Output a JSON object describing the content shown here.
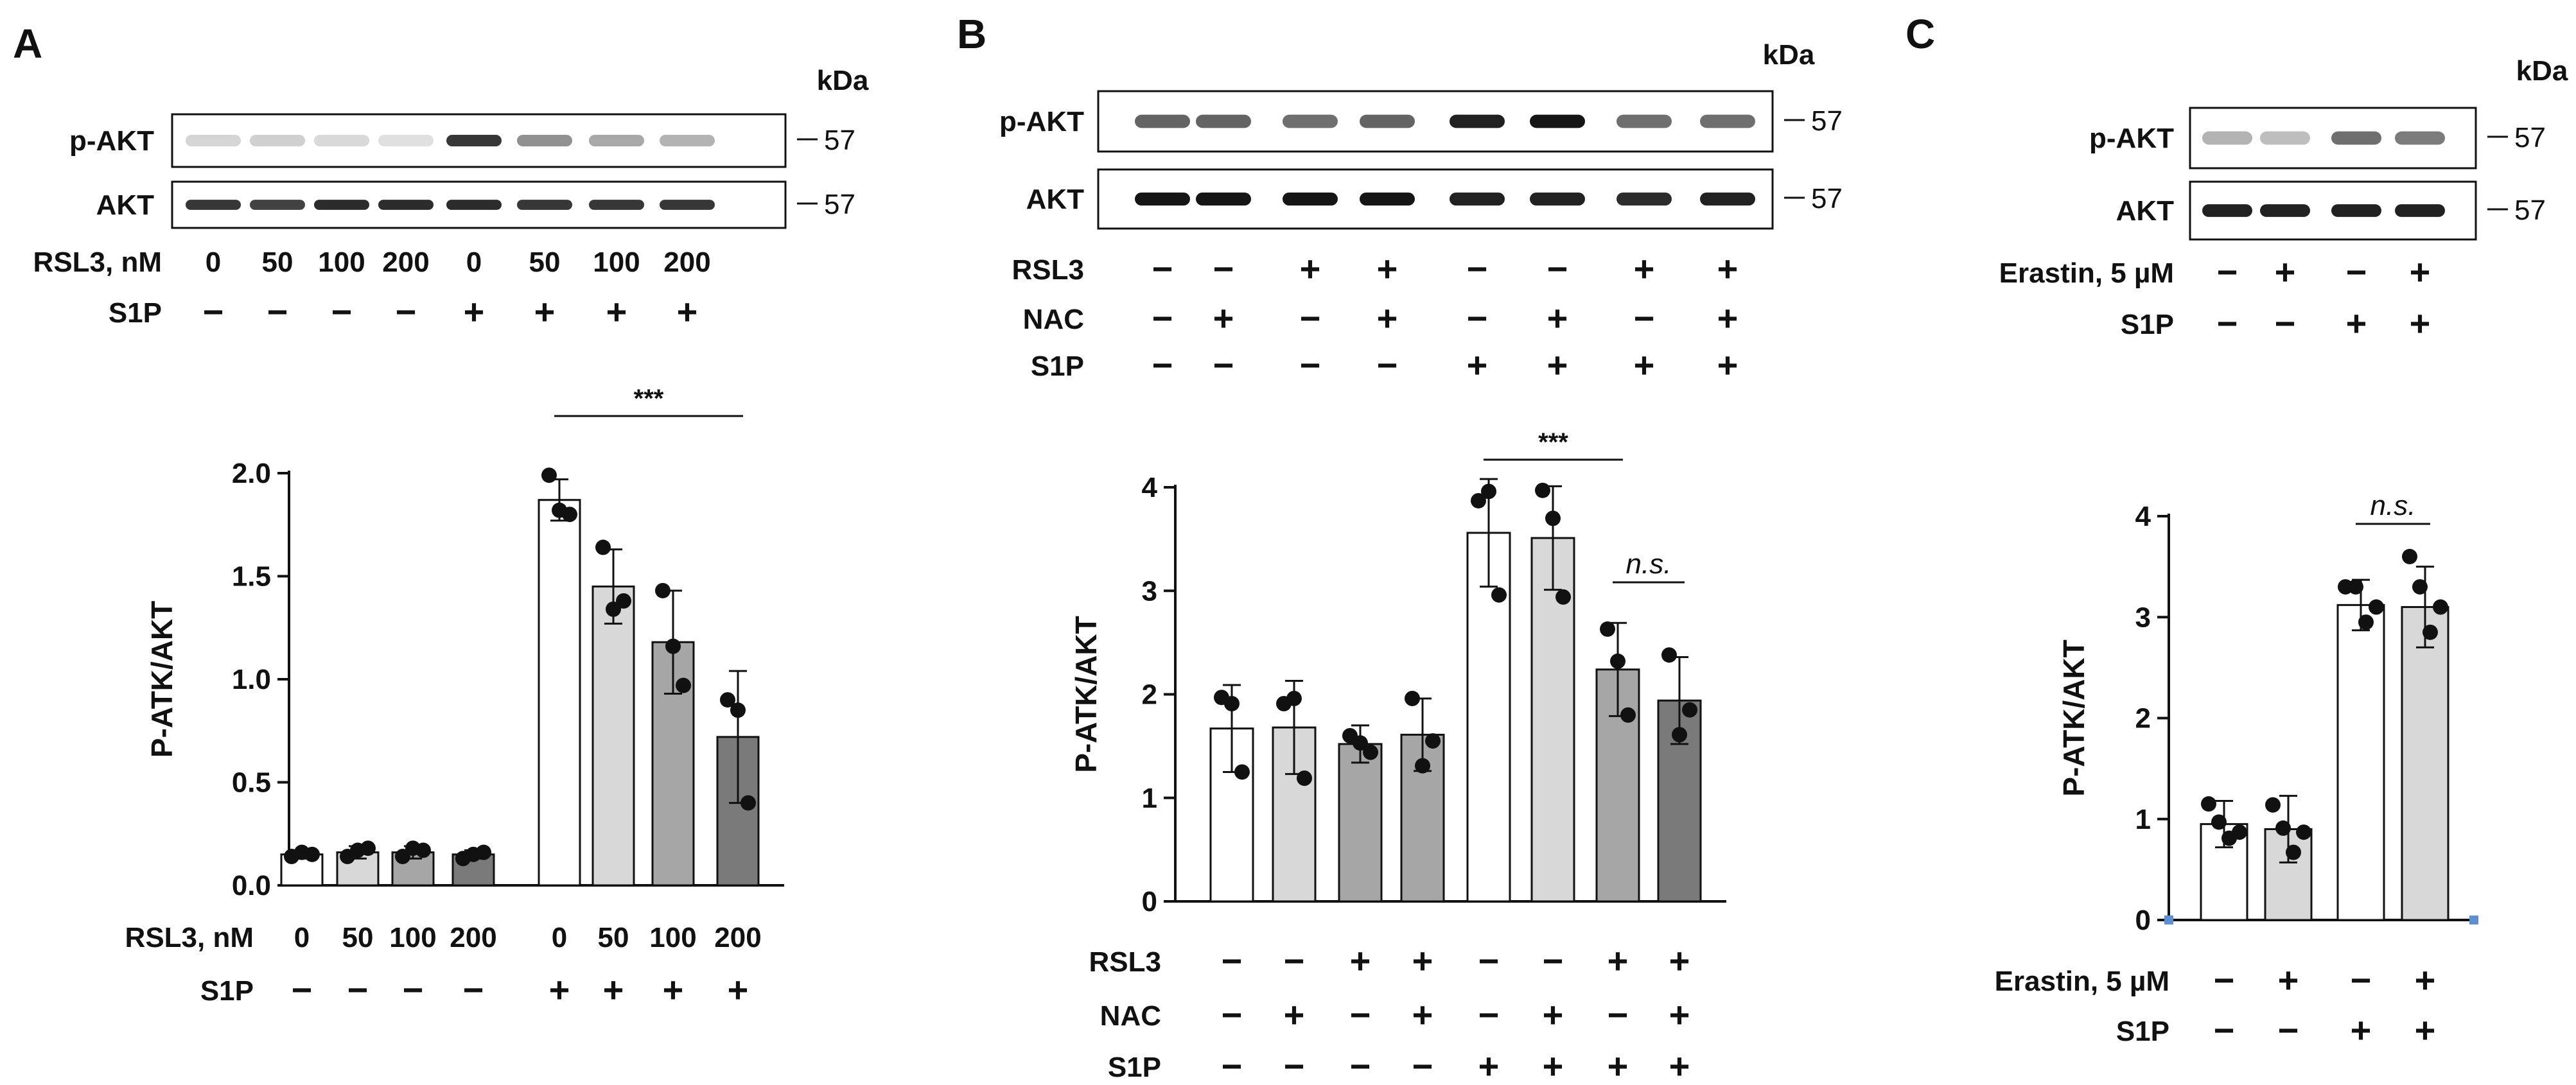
{
  "figure": {
    "panels": [
      {
        "letter": "A",
        "kda_label": "kDa",
        "blot_rows": [
          {
            "name": "p-AKT",
            "mw": "57",
            "intensities": [
              0.1,
              0.12,
              0.08,
              0.05,
              0.8,
              0.4,
              0.3,
              0.25
            ]
          },
          {
            "name": "AKT",
            "mw": "57",
            "intensities": [
              0.8,
              0.75,
              0.85,
              0.85,
              0.85,
              0.8,
              0.8,
              0.8
            ]
          }
        ],
        "blot_conditions": [
          {
            "label": "RSL3, nM",
            "values": [
              "0",
              "50",
              "100",
              "200",
              "0",
              "50",
              "100",
              "200"
            ]
          },
          {
            "label": "S1P",
            "values": [
              "−",
              "−",
              "−",
              "−",
              "+",
              "+",
              "+",
              "+"
            ]
          }
        ],
        "chart_conditions": [
          {
            "label": "RSL3, nM",
            "values": [
              "0",
              "50",
              "100",
              "200",
              "0",
              "50",
              "100",
              "200"
            ]
          },
          {
            "label": "S1P",
            "values": [
              "−",
              "−",
              "−",
              "−",
              "+",
              "+",
              "+",
              "+"
            ]
          }
        ],
        "annotations": [
          {
            "text": "***",
            "from": 4,
            "to": 7
          }
        ]
      },
      {
        "letter": "B",
        "kda_label": "kDa",
        "blot_rows": [
          {
            "name": "p-AKT",
            "mw": "57",
            "intensities": [
              0.6,
              0.6,
              0.55,
              0.6,
              0.9,
              0.95,
              0.55,
              0.55
            ]
          },
          {
            "name": "AKT",
            "mw": "57",
            "intensities": [
              0.95,
              0.95,
              0.95,
              0.95,
              0.9,
              0.9,
              0.85,
              0.9
            ]
          }
        ],
        "blot_conditions": [
          {
            "label": "RSL3",
            "values": [
              "−",
              "−",
              "+",
              "+",
              "−",
              "−",
              "+",
              "+"
            ]
          },
          {
            "label": "NAC",
            "values": [
              "−",
              "+",
              "−",
              "+",
              "−",
              "+",
              "−",
              "+"
            ]
          },
          {
            "label": "S1P",
            "values": [
              "−",
              "−",
              "−",
              "−",
              "+",
              "+",
              "+",
              "+"
            ]
          }
        ],
        "chart_conditions": [
          {
            "label": "RSL3",
            "values": [
              "−",
              "−",
              "+",
              "+",
              "−",
              "−",
              "+",
              "+"
            ]
          },
          {
            "label": "NAC",
            "values": [
              "−",
              "+",
              "−",
              "+",
              "−",
              "+",
              "−",
              "+"
            ]
          },
          {
            "label": "S1P",
            "values": [
              "−",
              "−",
              "−",
              "−",
              "+",
              "+",
              "+",
              "+"
            ]
          }
        ],
        "annotations": [
          {
            "text": "***",
            "from": 4,
            "to": 6
          },
          {
            "text": "n.s.",
            "from": 6,
            "to": 7
          }
        ]
      },
      {
        "letter": "C",
        "kda_label": "kDa",
        "blot_rows": [
          {
            "name": "p-AKT",
            "mw": "57",
            "intensities": [
              0.25,
              0.2,
              0.55,
              0.5
            ]
          },
          {
            "name": "AKT",
            "mw": "57",
            "intensities": [
              0.9,
              0.9,
              0.9,
              0.9
            ]
          }
        ],
        "blot_conditions": [
          {
            "label": "Erastin, 5 µM",
            "values": [
              "−",
              "+",
              "−",
              "+"
            ]
          },
          {
            "label": "S1P",
            "values": [
              "−",
              "−",
              "+",
              "+"
            ]
          }
        ],
        "chart_conditions": [
          {
            "label": "Erastin, 5 µM",
            "values": [
              "−",
              "+",
              "−",
              "+"
            ]
          },
          {
            "label": "S1P",
            "values": [
              "−",
              "−",
              "+",
              "+"
            ]
          }
        ],
        "annotations": [
          {
            "text": "n.s.",
            "from": 2,
            "to": 3
          }
        ]
      }
    ]
  },
  "chart_data": [
    {
      "panel": "A",
      "type": "bar",
      "title": "",
      "xlabel": "",
      "ylabel": "P-ATK/AKT",
      "ylim": [
        0,
        2.0
      ],
      "yticks": [
        "0.0",
        "0.5",
        "1.0",
        "1.5",
        "2.0"
      ],
      "categories": [
        "0 / −",
        "50 / −",
        "100 / −",
        "200 / −",
        "0 / +",
        "50 / +",
        "100 / +",
        "200 / +"
      ],
      "values": [
        0.15,
        0.16,
        0.16,
        0.15,
        1.87,
        1.45,
        1.18,
        0.72
      ],
      "errors": [
        0.02,
        0.03,
        0.03,
        0.02,
        0.1,
        0.18,
        0.25,
        0.32
      ],
      "points": [
        [
          0.14,
          0.16,
          0.15
        ],
        [
          0.14,
          0.17,
          0.18
        ],
        [
          0.14,
          0.18,
          0.17
        ],
        [
          0.13,
          0.15,
          0.16
        ],
        [
          1.99,
          1.82,
          1.8
        ],
        [
          1.64,
          1.34,
          1.38
        ],
        [
          1.43,
          1.16,
          0.97
        ],
        [
          0.9,
          0.85,
          0.4
        ]
      ],
      "fills": [
        "#ffffff",
        "#d8d8d8",
        "#a6a6a6",
        "#7a7a7a",
        "#ffffff",
        "#d8d8d8",
        "#a6a6a6",
        "#7a7a7a"
      ]
    },
    {
      "panel": "B",
      "type": "bar",
      "title": "",
      "xlabel": "",
      "ylabel": "P-ATK/AKT",
      "ylim": [
        0,
        4
      ],
      "yticks": [
        "0",
        "1",
        "2",
        "3",
        "4"
      ],
      "categories": [
        "−/−/−",
        "−/+/−",
        "+/−/−",
        "+/+/−",
        "−/−/+",
        "−/+/+",
        "+/−/+",
        "+/+/+"
      ],
      "values": [
        1.67,
        1.68,
        1.52,
        1.61,
        3.56,
        3.51,
        2.24,
        1.94
      ],
      "errors": [
        0.42,
        0.45,
        0.18,
        0.35,
        0.52,
        0.5,
        0.45,
        0.42
      ],
      "points": [
        [
          1.97,
          1.91,
          1.25
        ],
        [
          1.91,
          1.96,
          1.19
        ],
        [
          1.6,
          1.53,
          1.44
        ],
        [
          1.96,
          1.31,
          1.55
        ],
        [
          3.87,
          3.96,
          2.96
        ],
        [
          3.97,
          3.7,
          2.94
        ],
        [
          2.63,
          2.32,
          1.8
        ],
        [
          2.38,
          1.61,
          1.85
        ]
      ],
      "fills": [
        "#ffffff",
        "#d8d8d8",
        "#a6a6a6",
        "#a6a6a6",
        "#ffffff",
        "#d8d8d8",
        "#a6a6a6",
        "#7a7a7a"
      ]
    },
    {
      "panel": "C",
      "type": "bar",
      "title": "",
      "xlabel": "",
      "ylabel": "P-ATK/AKT",
      "ylim": [
        0,
        4
      ],
      "yticks": [
        "0",
        "1",
        "2",
        "3",
        "4"
      ],
      "categories": [
        "−/−",
        "+/−",
        "−/+",
        "+/+"
      ],
      "values": [
        0.95,
        0.9,
        3.12,
        3.1
      ],
      "errors": [
        0.23,
        0.33,
        0.25,
        0.4
      ],
      "points": [
        [
          1.15,
          0.97,
          0.81,
          0.87
        ],
        [
          1.14,
          0.91,
          0.67,
          0.87
        ],
        [
          3.3,
          3.3,
          2.95,
          3.1
        ],
        [
          3.6,
          3.3,
          2.85,
          3.1
        ]
      ],
      "fills": [
        "#ffffff",
        "#d8d8d8",
        "#ffffff",
        "#d8d8d8"
      ]
    }
  ]
}
